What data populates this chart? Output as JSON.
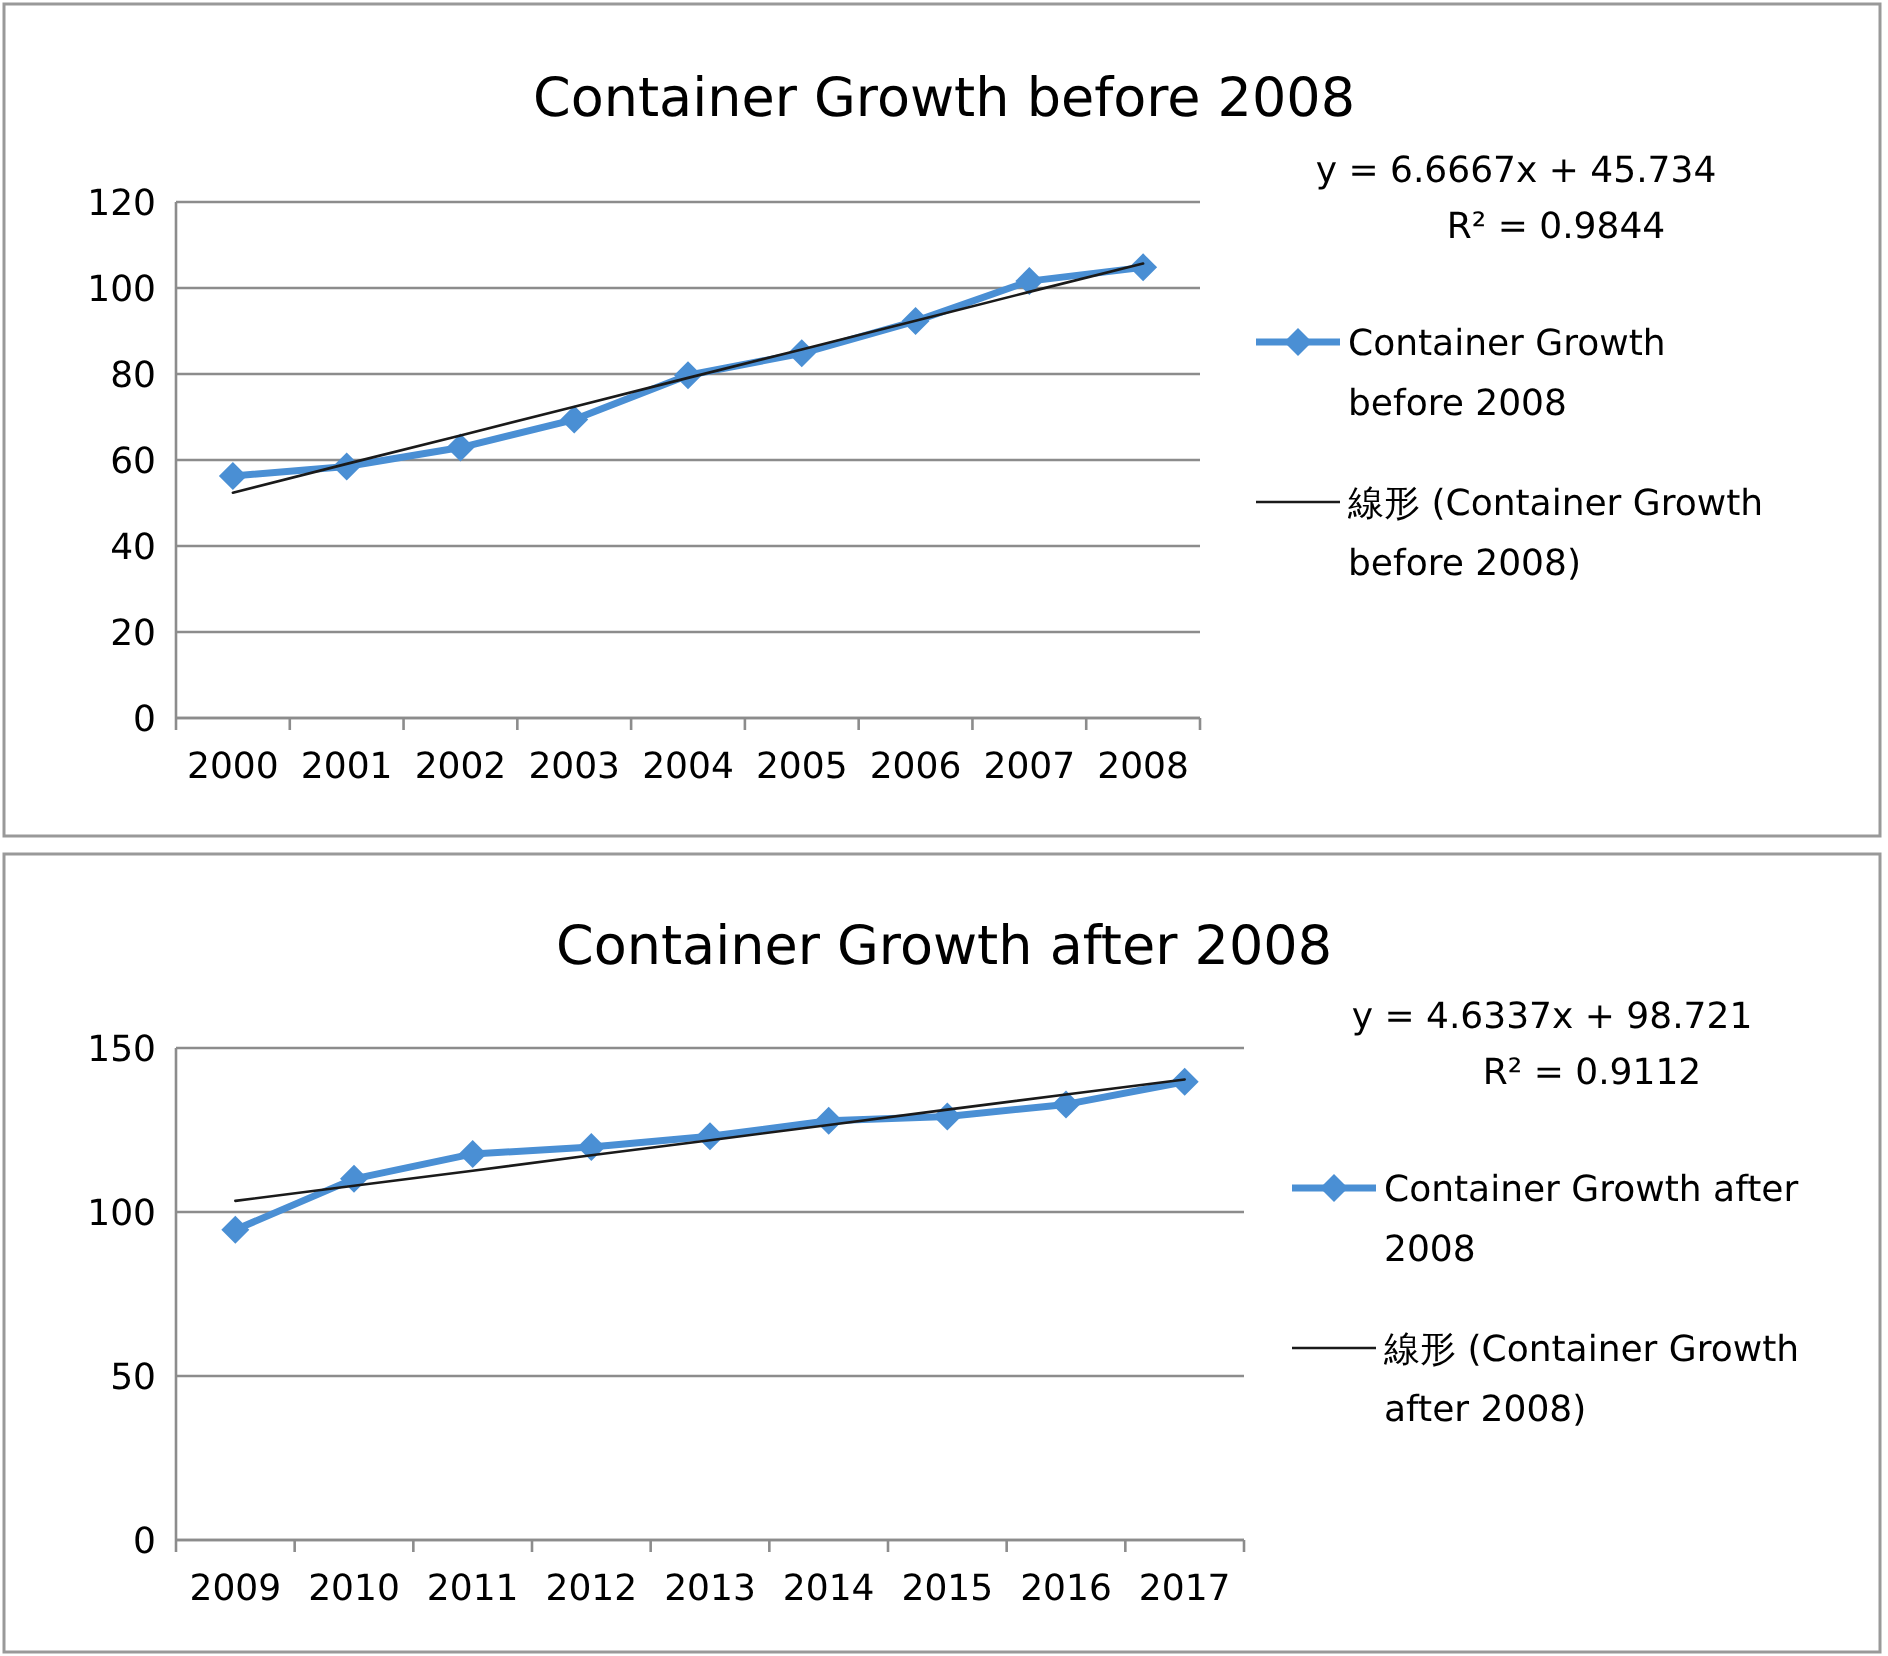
{
  "chart_data": [
    {
      "type": "line",
      "title": "Container Growth before 2008",
      "categories": [
        "2000",
        "2001",
        "2002",
        "2003",
        "2004",
        "2005",
        "2006",
        "2007",
        "2008"
      ],
      "ylim": [
        0,
        120
      ],
      "yticks": [
        0,
        20,
        40,
        60,
        80,
        100,
        120
      ],
      "grid": "y",
      "legend": "right",
      "annotations": [
        "y = 6.6667x + 45.734",
        "R² = 0.9844"
      ],
      "series": [
        {
          "name": "Container Growth before 2008",
          "color": "#4a8fd4",
          "marker": "diamond",
          "values": [
            56.3,
            58.5,
            62.9,
            69.4,
            79.7,
            84.8,
            92.3,
            101.6,
            104.8
          ]
        },
        {
          "name": "線形 (Container Growth before 2008)",
          "color": "#1a1a1a",
          "marker": "none",
          "values": [
            52.4,
            59.1,
            65.7,
            72.4,
            79.1,
            85.7,
            92.4,
            99.1,
            105.7
          ]
        }
      ]
    },
    {
      "type": "line",
      "title": "Container Growth after 2008",
      "categories": [
        "2009",
        "2010",
        "2011",
        "2012",
        "2013",
        "2014",
        "2015",
        "2016",
        "2017"
      ],
      "ylim": [
        0,
        150
      ],
      "yticks": [
        0,
        50,
        100,
        150
      ],
      "grid": "y",
      "legend": "right",
      "annotations": [
        "y = 4.6337x + 98.721",
        "R² = 0.9112"
      ],
      "series": [
        {
          "name": "Container Growth after 2008",
          "color": "#4a8fd4",
          "marker": "diamond",
          "values": [
            94.6,
            110.1,
            117.7,
            119.8,
            123.1,
            127.8,
            129.1,
            132.8,
            139.7
          ]
        },
        {
          "name": "線形 (Container Growth after 2008)",
          "color": "#1a1a1a",
          "marker": "none",
          "values": [
            103.4,
            108.0,
            112.6,
            117.3,
            121.9,
            126.5,
            131.2,
            135.8,
            140.4
          ]
        }
      ]
    }
  ]
}
